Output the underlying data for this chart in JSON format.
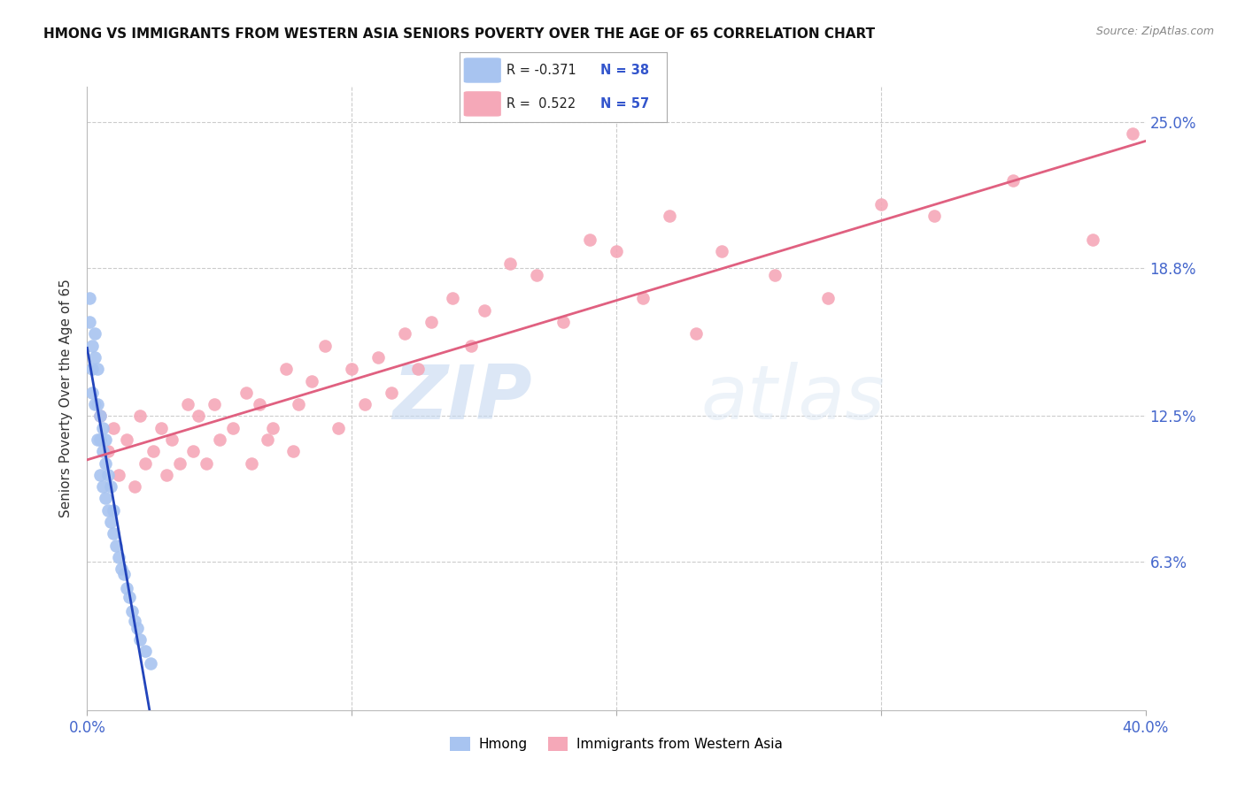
{
  "title": "HMONG VS IMMIGRANTS FROM WESTERN ASIA SENIORS POVERTY OVER THE AGE OF 65 CORRELATION CHART",
  "source": "Source: ZipAtlas.com",
  "ylabel": "Seniors Poverty Over the Age of 65",
  "y_ticks": [
    0.0,
    0.063,
    0.125,
    0.188,
    0.25
  ],
  "y_tick_labels": [
    "",
    "6.3%",
    "12.5%",
    "18.8%",
    "25.0%"
  ],
  "x_ticks": [
    0.0,
    0.1,
    0.2,
    0.3,
    0.4
  ],
  "x_tick_labels": [
    "0.0%",
    "",
    "",
    "",
    "40.0%"
  ],
  "hmong_color": "#a8c4f0",
  "western_asia_color": "#f5a8b8",
  "hmong_line_color": "#2244bb",
  "western_asia_line_color": "#e06080",
  "legend_hmong_label": "Hmong",
  "legend_western_label": "Immigrants from Western Asia",
  "R_hmong": -0.371,
  "N_hmong": 38,
  "R_western": 0.522,
  "N_western": 57,
  "hmong_x": [
    0.001,
    0.001,
    0.002,
    0.002,
    0.002,
    0.003,
    0.003,
    0.003,
    0.004,
    0.004,
    0.004,
    0.005,
    0.005,
    0.005,
    0.006,
    0.006,
    0.006,
    0.007,
    0.007,
    0.007,
    0.008,
    0.008,
    0.009,
    0.009,
    0.01,
    0.01,
    0.011,
    0.012,
    0.013,
    0.014,
    0.015,
    0.016,
    0.017,
    0.018,
    0.019,
    0.02,
    0.022,
    0.024
  ],
  "hmong_y": [
    0.175,
    0.165,
    0.155,
    0.145,
    0.135,
    0.16,
    0.15,
    0.13,
    0.145,
    0.13,
    0.115,
    0.125,
    0.115,
    0.1,
    0.12,
    0.11,
    0.095,
    0.115,
    0.105,
    0.09,
    0.1,
    0.085,
    0.095,
    0.08,
    0.085,
    0.075,
    0.07,
    0.065,
    0.06,
    0.058,
    0.052,
    0.048,
    0.042,
    0.038,
    0.035,
    0.03,
    0.025,
    0.02
  ],
  "western_x": [
    0.005,
    0.008,
    0.01,
    0.012,
    0.015,
    0.018,
    0.02,
    0.022,
    0.025,
    0.028,
    0.03,
    0.032,
    0.035,
    0.038,
    0.04,
    0.042,
    0.045,
    0.048,
    0.05,
    0.055,
    0.06,
    0.062,
    0.065,
    0.068,
    0.07,
    0.075,
    0.078,
    0.08,
    0.085,
    0.09,
    0.095,
    0.1,
    0.105,
    0.11,
    0.115,
    0.12,
    0.125,
    0.13,
    0.138,
    0.145,
    0.15,
    0.16,
    0.17,
    0.18,
    0.19,
    0.2,
    0.21,
    0.22,
    0.23,
    0.24,
    0.26,
    0.28,
    0.3,
    0.32,
    0.35,
    0.38,
    0.395
  ],
  "western_y": [
    0.125,
    0.11,
    0.12,
    0.1,
    0.115,
    0.095,
    0.125,
    0.105,
    0.11,
    0.12,
    0.1,
    0.115,
    0.105,
    0.13,
    0.11,
    0.125,
    0.105,
    0.13,
    0.115,
    0.12,
    0.135,
    0.105,
    0.13,
    0.115,
    0.12,
    0.145,
    0.11,
    0.13,
    0.14,
    0.155,
    0.12,
    0.145,
    0.13,
    0.15,
    0.135,
    0.16,
    0.145,
    0.165,
    0.175,
    0.155,
    0.17,
    0.19,
    0.185,
    0.165,
    0.2,
    0.195,
    0.175,
    0.21,
    0.16,
    0.195,
    0.185,
    0.175,
    0.215,
    0.21,
    0.225,
    0.2,
    0.245
  ],
  "watermark_zip": "ZIP",
  "watermark_atlas": "atlas",
  "background_color": "#ffffff",
  "grid_color": "#cccccc",
  "xlim": [
    0,
    0.4
  ],
  "ylim": [
    0,
    0.265
  ]
}
